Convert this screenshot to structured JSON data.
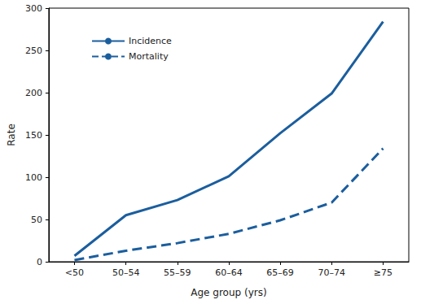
{
  "chart_data": {
    "type": "line",
    "x_label": "Age group (yrs)",
    "y_label": "Rate",
    "categories": [
      "<50",
      "50–54",
      "55–59",
      "60–64",
      "65–69",
      "70–74",
      "≥75"
    ],
    "series": [
      {
        "name": "Incidence",
        "color": "#1b5e9e",
        "line_style": "solid",
        "values": [
          7,
          55,
          73,
          101,
          152,
          199,
          284
        ]
      },
      {
        "name": "Mortality",
        "color": "#1b5e9e",
        "line_style": "dashed",
        "values": [
          2,
          13,
          22,
          33,
          49,
          70,
          134
        ]
      }
    ],
    "ylim": [
      0,
      300
    ],
    "yticks": [
      0,
      50,
      100,
      150,
      200,
      250,
      300
    ],
    "grid": false,
    "legend": "upper left"
  }
}
